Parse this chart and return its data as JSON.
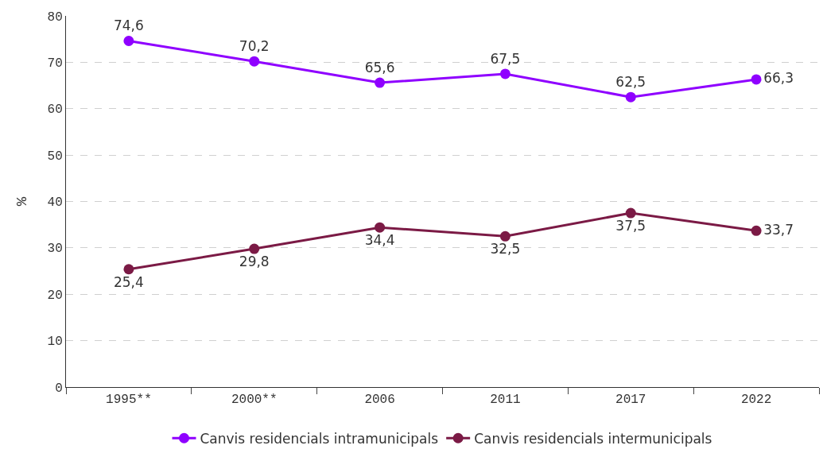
{
  "chart_data": {
    "type": "line",
    "ylabel": "%",
    "categories": [
      "1995**",
      "2000**",
      "2006",
      "2011",
      "2017",
      "2022"
    ],
    "series": [
      {
        "name": "Canvis residencials intramunicipals",
        "color": "#8f00ff",
        "values": [
          74.6,
          70.2,
          65.6,
          67.5,
          62.5,
          66.3
        ],
        "value_labels": [
          "74,6",
          "70,2",
          "65,6",
          "67,5",
          "62,5",
          "66,3"
        ]
      },
      {
        "name": "Canvis residencials intermunicipals",
        "color": "#7b1a45",
        "values": [
          25.4,
          29.8,
          34.4,
          32.5,
          37.5,
          33.7
        ],
        "value_labels": [
          "25,4",
          "29,8",
          "34,4",
          "32,5",
          "37,5",
          "33,7"
        ]
      }
    ],
    "ylim": [
      0,
      80
    ],
    "yticks": [
      0,
      10,
      20,
      30,
      40,
      50,
      60,
      70,
      80
    ],
    "grid": "y",
    "legend": "bottom",
    "marker": "circle",
    "line_style": "solid"
  }
}
